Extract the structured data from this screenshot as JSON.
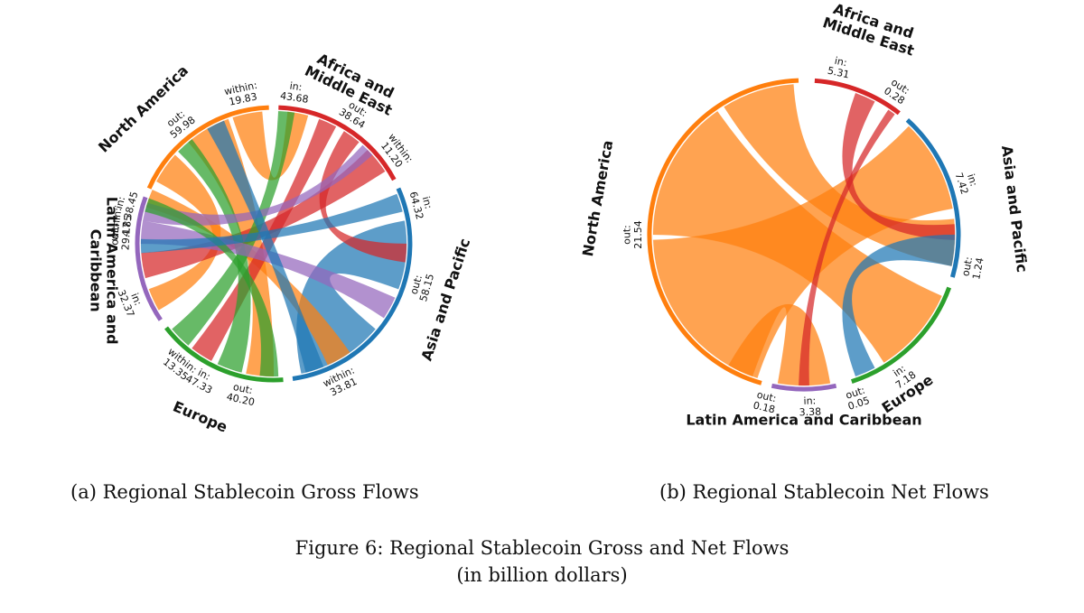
{
  "chart_data": [
    {
      "type": "chord",
      "caption": "(a) Regional Stablecoin Gross Flows",
      "regions": [
        {
          "name": "Africa and\nMiddle East",
          "color": "#d62728",
          "values": [
            {
              "label": "in:",
              "value": "43.68"
            },
            {
              "label": "out:",
              "value": "38.64"
            },
            {
              "label": "within:",
              "value": "11.20"
            }
          ]
        },
        {
          "name": "Asia and Pacific",
          "color": "#1f77b4",
          "values": [
            {
              "label": "in:",
              "value": "64.32"
            },
            {
              "label": "out:",
              "value": "58.15"
            },
            {
              "label": "within:",
              "value": "33.81"
            }
          ]
        },
        {
          "name": "Europe",
          "color": "#2ca02c",
          "values": [
            {
              "label": "in:",
              "value": "47.33"
            },
            {
              "label": "out:",
              "value": "40.20"
            },
            {
              "label": "within:",
              "value": "13.35"
            }
          ]
        },
        {
          "name": "Latin America and\nCaribbean",
          "color": "#9467bd",
          "values": [
            {
              "label": "in:",
              "value": "32.37"
            },
            {
              "label": "out:",
              "value": "29.17"
            },
            {
              "label": "within:",
              "value": "4.85"
            }
          ]
        },
        {
          "name": "North America",
          "color": "#ff7f0e",
          "values": [
            {
              "label": "in:",
              "value": "38.45"
            },
            {
              "label": "out:",
              "value": "59.98"
            },
            {
              "label": "within:",
              "value": "19.83"
            }
          ]
        }
      ]
    },
    {
      "type": "chord",
      "caption": "(b) Regional Stablecoin Net Flows",
      "regions": [
        {
          "name": "Africa and\nMiddle East",
          "color": "#d62728",
          "values": [
            {
              "label": "in:",
              "value": "5.31"
            },
            {
              "label": "out:",
              "value": "0.28"
            }
          ]
        },
        {
          "name": "Asia and Pacific",
          "color": "#1f77b4",
          "values": [
            {
              "label": "in:",
              "value": "7.42"
            },
            {
              "label": "out:",
              "value": "1.24"
            }
          ]
        },
        {
          "name": "Europe",
          "color": "#2ca02c",
          "values": [
            {
              "label": "in:",
              "value": "7.18"
            },
            {
              "label": "out:",
              "value": "0.05"
            }
          ]
        },
        {
          "name": "Latin America and Caribbean",
          "color": "#9467bd",
          "values": [
            {
              "label": "in:",
              "value": "3.38"
            },
            {
              "label": "out:",
              "value": "0.18"
            }
          ]
        },
        {
          "name": "North America",
          "color": "#ff7f0e",
          "values": [
            {
              "label": "out:",
              "value": "21.54"
            }
          ]
        }
      ]
    }
  ],
  "captions": {
    "a": "(a) Regional Stablecoin Gross Flows",
    "b": "(b) Regional Stablecoin Net Flows",
    "figure_line1": "Figure 6: Regional Stablecoin Gross and Net Flows",
    "figure_line2": "(in billion dollars)"
  }
}
